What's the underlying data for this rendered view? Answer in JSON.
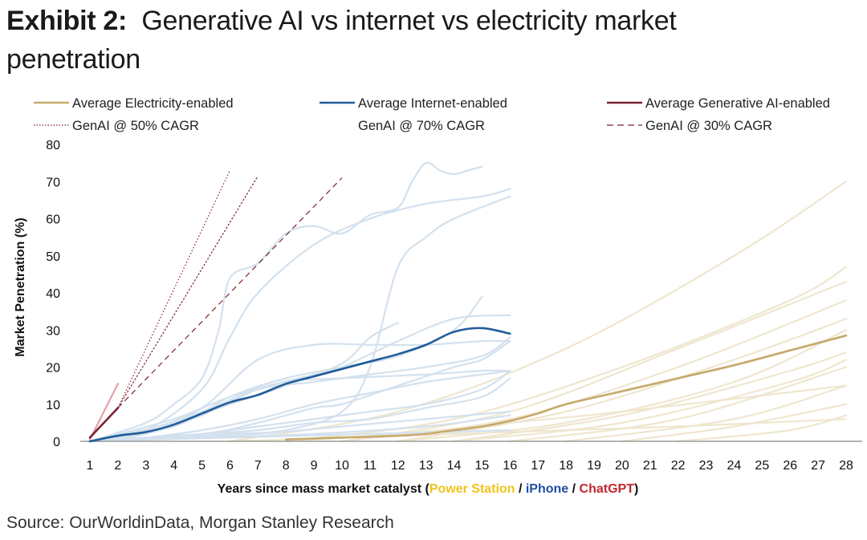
{
  "header": {
    "exhibit": "Exhibit 2:",
    "title_line1": "Generative AI vs internet vs electricity market",
    "title_line2": "penetration"
  },
  "source": "Source: OurWorldinData, Morgan Stanley Research",
  "colors": {
    "electricity": "#c6a96b",
    "electricity_bg": "#efe6cf",
    "internet": "#1f5c99",
    "internet_bg": "#d3e1ee",
    "genai": "#7b2233",
    "genai_bg": "#e3a0a8",
    "axis": "#888888"
  },
  "chart_data": {
    "type": "line",
    "title": "Generative AI vs internet vs electricity market penetration",
    "xlabel_prefix": "Years since mass market catalyst (",
    "xlabel_parts": [
      {
        "text": "Power Station",
        "color": "#f0c419"
      },
      {
        "text": " / ",
        "color": "#111111"
      },
      {
        "text": "iPhone",
        "color": "#1f4fa3"
      },
      {
        "text": " / ",
        "color": "#111111"
      },
      {
        "text": "ChatGPT",
        "color": "#c0282d"
      }
    ],
    "xlabel_suffix": ")",
    "ylabel": "Market Penetration (%)",
    "xlim": [
      1,
      28
    ],
    "ylim": [
      0,
      80
    ],
    "xticks": [
      1,
      2,
      3,
      4,
      5,
      6,
      7,
      8,
      9,
      10,
      11,
      12,
      13,
      14,
      15,
      16,
      17,
      18,
      19,
      20,
      21,
      22,
      23,
      24,
      25,
      26,
      27,
      28
    ],
    "yticks": [
      0,
      10,
      20,
      30,
      40,
      50,
      60,
      70,
      80
    ],
    "legend": [
      {
        "label": "Average Electricity-enabled",
        "style": "solid",
        "series": "electricity"
      },
      {
        "label": "Average Internet-enabled",
        "style": "solid",
        "series": "internet"
      },
      {
        "label": "Average Generative AI-enabled",
        "style": "solid",
        "series": "genai"
      },
      {
        "label": "GenAI @ 50% CAGR",
        "style": "dotted",
        "series": "genai"
      },
      {
        "label": "GenAI @ 70% CAGR",
        "style": "none",
        "series": "genai"
      },
      {
        "label": "GenAI @ 30% CAGR",
        "style": "dashed",
        "series": "genai"
      }
    ],
    "series": [
      {
        "name": "Average Electricity-enabled",
        "key": "electricity",
        "x": [
          8,
          10,
          12,
          13,
          14,
          15,
          16,
          17,
          18,
          20,
          22,
          24,
          26,
          28
        ],
        "y": [
          0.5,
          1,
          1.5,
          2,
          3,
          4,
          5.5,
          7.5,
          10,
          13.5,
          17,
          20.5,
          24.5,
          28.5
        ]
      },
      {
        "name": "Average Internet-enabled",
        "key": "internet",
        "x": [
          1,
          2,
          3,
          4,
          5,
          6,
          7,
          8,
          9,
          10,
          11,
          12,
          13,
          14,
          15,
          16
        ],
        "y": [
          0,
          1.5,
          2.5,
          4.5,
          7.5,
          10.5,
          12.5,
          15.5,
          17.5,
          19.5,
          21.5,
          23.5,
          26,
          29.5,
          30.5,
          29
        ]
      },
      {
        "name": "Average Generative AI-enabled",
        "key": "genai",
        "x": [
          1,
          2
        ],
        "y": [
          1,
          9
        ]
      },
      {
        "name": "GenAI @ 50% CAGR",
        "key": "genai_50",
        "style": "dotted",
        "x": [
          2,
          6
        ],
        "y": [
          9,
          73
        ]
      },
      {
        "name": "GenAI @ 70% CAGR",
        "key": "genai_70",
        "style": "dotted-dense",
        "x": [
          2,
          7
        ],
        "y": [
          9,
          71.5
        ]
      },
      {
        "name": "GenAI @ 30% CAGR",
        "key": "genai_30",
        "style": "dashed",
        "x": [
          2,
          10
        ],
        "y": [
          9,
          71
        ]
      }
    ],
    "background_series": {
      "genai": [
        {
          "x": [
            1,
            2
          ],
          "y": [
            0.5,
            15.5
          ]
        },
        {
          "x": [
            1,
            2
          ],
          "y": [
            0,
            1.5
          ]
        }
      ],
      "internet": [
        {
          "x": [
            1,
            3,
            4,
            5,
            5.6,
            6,
            7,
            8,
            9,
            10,
            11,
            12,
            12.5,
            13,
            13.5,
            14,
            14.5,
            15
          ],
          "y": [
            0,
            5,
            10,
            17,
            30,
            44,
            48,
            56,
            58,
            56,
            61,
            63,
            70,
            75,
            73,
            72,
            73,
            74
          ]
        },
        {
          "x": [
            1,
            3,
            5,
            6,
            7,
            9,
            11,
            13,
            15,
            16
          ],
          "y": [
            0,
            3,
            14,
            28,
            40,
            53,
            60,
            64,
            66,
            68
          ]
        },
        {
          "x": [
            1,
            4,
            6,
            8,
            10,
            11,
            12,
            13,
            14,
            16
          ],
          "y": [
            0,
            1,
            2,
            3,
            8,
            20,
            47,
            55,
            60,
            66
          ]
        },
        {
          "x": [
            1,
            3,
            5,
            7,
            9,
            10,
            12,
            14,
            16
          ],
          "y": [
            0,
            2,
            7,
            14,
            18,
            20,
            27,
            33,
            34
          ]
        },
        {
          "x": [
            1,
            3,
            5,
            7,
            9,
            11,
            13,
            15,
            16
          ],
          "y": [
            0,
            3,
            9,
            22,
            26,
            26,
            26,
            27,
            27
          ]
        },
        {
          "x": [
            1,
            4,
            6,
            8,
            10,
            12,
            14,
            15
          ],
          "y": [
            0,
            4,
            12,
            17,
            20,
            23,
            30,
            39
          ]
        },
        {
          "x": [
            1,
            4,
            6,
            8,
            10,
            11,
            12
          ],
          "y": [
            0,
            5,
            10,
            15,
            21,
            28,
            32
          ]
        },
        {
          "x": [
            1,
            3,
            5,
            7,
            9,
            11,
            13,
            15,
            16
          ],
          "y": [
            0,
            3,
            8,
            14,
            16,
            18,
            20,
            23,
            28
          ]
        },
        {
          "x": [
            1,
            3,
            5,
            7,
            9,
            11,
            13,
            15,
            16
          ],
          "y": [
            0,
            1,
            3,
            6,
            10,
            13,
            16,
            18,
            19
          ]
        },
        {
          "x": [
            1,
            3,
            5,
            7,
            9,
            11,
            13,
            15,
            16
          ],
          "y": [
            0,
            1,
            2,
            4,
            6,
            8,
            10,
            14,
            19
          ]
        },
        {
          "x": [
            1,
            3,
            5,
            7,
            9,
            11,
            13,
            15,
            16
          ],
          "y": [
            0,
            1,
            2,
            3,
            5,
            6,
            9,
            12,
            17
          ]
        },
        {
          "x": [
            1,
            4,
            7,
            10,
            13,
            16
          ],
          "y": [
            0,
            1,
            2,
            4,
            6,
            8
          ]
        },
        {
          "x": [
            1,
            5,
            9,
            13,
            16
          ],
          "y": [
            0,
            1,
            2,
            4,
            7
          ]
        },
        {
          "x": [
            1,
            6,
            11,
            16
          ],
          "y": [
            0,
            1,
            2,
            3
          ]
        },
        {
          "x": [
            1,
            5,
            7,
            9,
            10,
            12,
            14,
            15,
            16
          ],
          "y": [
            0,
            2,
            5,
            9,
            10,
            15,
            20,
            22,
            27
          ]
        },
        {
          "x": [
            1,
            4,
            6,
            8,
            10,
            13,
            15,
            16
          ],
          "y": [
            0,
            6,
            12,
            16,
            17,
            18,
            19,
            19
          ]
        }
      ],
      "electricity": [
        {
          "x": [
            6,
            12,
            18,
            24,
            28
          ],
          "y": [
            0,
            8,
            25,
            50,
            70
          ]
        },
        {
          "x": [
            8,
            14,
            20,
            26,
            28
          ],
          "y": [
            0,
            6,
            20,
            38,
            47
          ]
        },
        {
          "x": [
            10,
            16,
            22,
            28
          ],
          "y": [
            0,
            8,
            25,
            43
          ]
        },
        {
          "x": [
            10,
            16,
            22,
            28
          ],
          "y": [
            0,
            6,
            20,
            38
          ]
        },
        {
          "x": [
            12,
            18,
            24,
            28
          ],
          "y": [
            0,
            8,
            22,
            33
          ]
        },
        {
          "x": [
            12,
            18,
            24,
            28
          ],
          "y": [
            0,
            5,
            16,
            30
          ]
        },
        {
          "x": [
            14,
            20,
            26,
            28
          ],
          "y": [
            0,
            7,
            19,
            24
          ]
        },
        {
          "x": [
            14,
            20,
            26,
            28
          ],
          "y": [
            0,
            5,
            16,
            22
          ]
        },
        {
          "x": [
            16,
            22,
            28
          ],
          "y": [
            0,
            6,
            20
          ]
        },
        {
          "x": [
            18,
            24,
            28
          ],
          "y": [
            0,
            6,
            15
          ]
        },
        {
          "x": [
            20,
            24,
            28
          ],
          "y": [
            0,
            4,
            10
          ]
        },
        {
          "x": [
            22,
            26,
            28
          ],
          "y": [
            0,
            3,
            7
          ]
        },
        {
          "x": [
            6,
            10,
            14,
            18,
            22,
            28
          ],
          "y": [
            0,
            1,
            2,
            3,
            4,
            6
          ]
        },
        {
          "x": [
            8,
            12,
            16,
            20,
            28
          ],
          "y": [
            0,
            2,
            5,
            8,
            15
          ]
        }
      ]
    }
  }
}
